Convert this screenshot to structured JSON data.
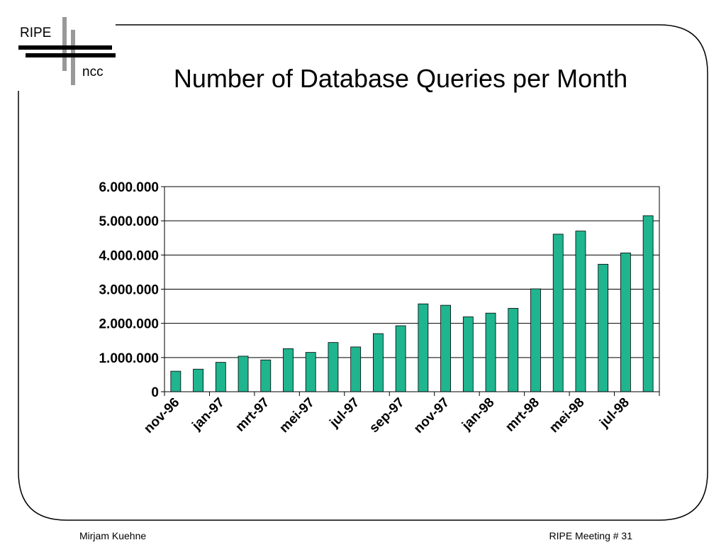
{
  "logo": {
    "top": "RIPE",
    "bottom": "ncc"
  },
  "title": "Number of Database Queries per Month",
  "footer": {
    "left": "Mirjam Kuehne",
    "right": "RIPE Meeting # 31"
  },
  "colors": {
    "bar": "#1fb58f",
    "bar_stroke": "#000000",
    "logo_gray": "#999999"
  },
  "chart_data": {
    "type": "bar",
    "title": "",
    "xlabel": "",
    "ylabel": "",
    "ylim": [
      0,
      6000000
    ],
    "y_ticks": [
      {
        "value": 0,
        "label": "0"
      },
      {
        "value": 1000000,
        "label": "1.000.000"
      },
      {
        "value": 2000000,
        "label": "2.000.000"
      },
      {
        "value": 3000000,
        "label": "3.000.000"
      },
      {
        "value": 4000000,
        "label": "4.000.000"
      },
      {
        "value": 5000000,
        "label": "5.000.000"
      },
      {
        "value": 6000000,
        "label": "6.000.000"
      }
    ],
    "grid": true,
    "legend": "none",
    "categories": [
      "nov-96",
      "dec-96",
      "jan-97",
      "feb-97",
      "mrt-97",
      "apr-97",
      "mei-97",
      "jun-97",
      "jul-97",
      "aug-97",
      "sep-97",
      "okt-97",
      "nov-97",
      "dec-97",
      "jan-98",
      "feb-98",
      "mrt-98",
      "apr-98",
      "mei-98",
      "jun-98",
      "jul-98",
      "aug-98"
    ],
    "x_tick_labels": [
      "nov-96",
      "jan-97",
      "mrt-97",
      "mei-97",
      "jul-97",
      "sep-97",
      "nov-97",
      "jan-98",
      "mrt-98",
      "mei-98",
      "jul-98"
    ],
    "values": [
      600000,
      660000,
      860000,
      1040000,
      930000,
      1260000,
      1150000,
      1440000,
      1310000,
      1700000,
      1930000,
      2570000,
      2530000,
      2190000,
      2300000,
      2440000,
      3010000,
      4610000,
      4700000,
      3730000,
      4060000,
      5150000
    ]
  }
}
